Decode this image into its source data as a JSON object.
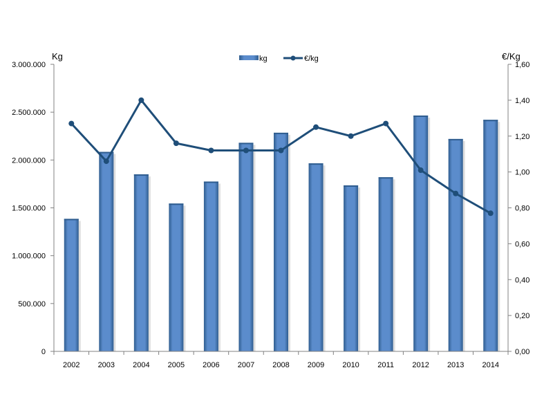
{
  "chart_data": {
    "type": "bar",
    "categories": [
      "2002",
      "2003",
      "2004",
      "2005",
      "2006",
      "2007",
      "2008",
      "2009",
      "2010",
      "2011",
      "2012",
      "2013",
      "2014"
    ],
    "series": [
      {
        "name": "kg",
        "type": "bar",
        "axis": "left",
        "values": [
          1385000,
          2085000,
          1850000,
          1545000,
          1775000,
          2180000,
          2285000,
          1965000,
          1735000,
          1820000,
          2465000,
          2220000,
          2420000
        ]
      },
      {
        "name": "€/kg",
        "type": "line",
        "axis": "right",
        "values": [
          1.27,
          1.06,
          1.4,
          1.16,
          1.12,
          1.12,
          1.12,
          1.25,
          1.2,
          1.27,
          1.01,
          0.88,
          0.77
        ]
      }
    ],
    "ylabel": "Kg",
    "y2label": "€/Kg",
    "ylim": [
      0,
      3000000
    ],
    "y2lim": [
      0,
      1.6
    ],
    "yticks": [
      "0",
      "500.000",
      "1.000.000",
      "1.500.000",
      "2.000.000",
      "2.500.000",
      "3.000.000"
    ],
    "y2ticks": [
      "0,00",
      "0,20",
      "0,40",
      "0,60",
      "0,80",
      "1,00",
      "1,20",
      "1,40",
      "1,60"
    ],
    "grid": false,
    "legend_position": "top",
    "colors": {
      "bar": "#4f81bd",
      "bar_dark": "#2f5d8f",
      "line": "#1f4e79",
      "axis": "#808080"
    }
  }
}
